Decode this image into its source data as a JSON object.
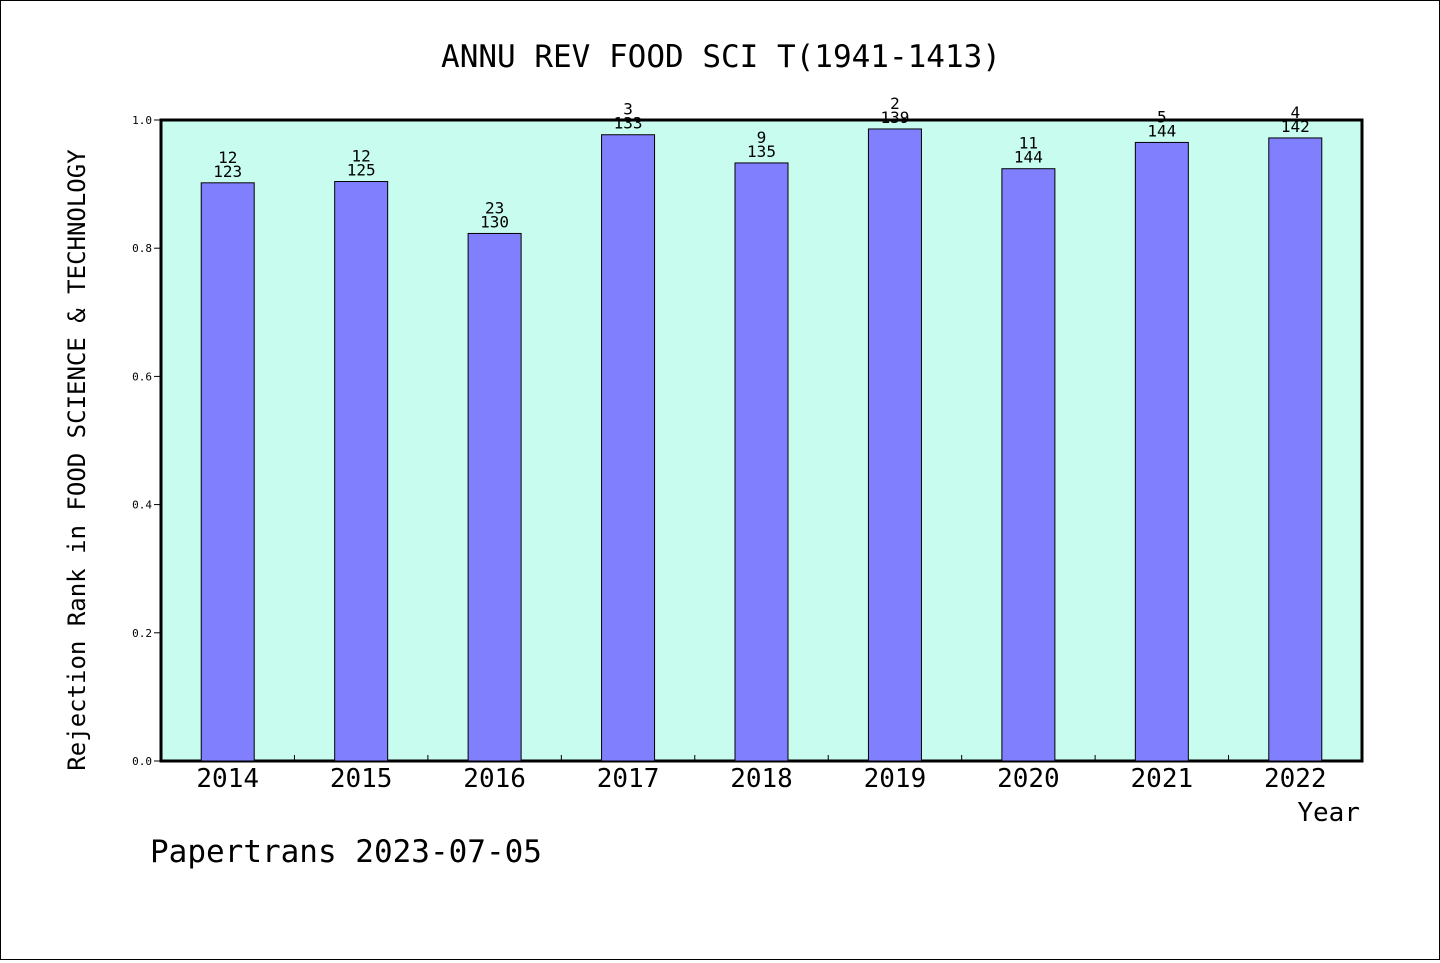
{
  "chart_data": {
    "type": "bar",
    "title": "ANNU REV FOOD SCI T(1941-1413)",
    "xlabel": "Year",
    "ylabel": "Rejection Rank in FOOD SCIENCE & TECHNOLOGY",
    "categories": [
      "2014",
      "2015",
      "2016",
      "2017",
      "2018",
      "2019",
      "2020",
      "2021",
      "2022"
    ],
    "values": [
      0.902,
      0.904,
      0.823,
      0.977,
      0.933,
      0.986,
      0.924,
      0.965,
      0.972
    ],
    "rank_labels": [
      "12",
      "12",
      "23",
      "3",
      "9",
      "2",
      "11",
      "5",
      "4"
    ],
    "total_labels": [
      "123",
      "125",
      "130",
      "133",
      "135",
      "139",
      "144",
      "144",
      "142"
    ],
    "ylim": [
      0,
      1
    ],
    "yticks": [
      "0.0",
      "0.2",
      "0.4",
      "0.6",
      "0.8",
      "1.0"
    ],
    "grid": false,
    "colors": {
      "bar": "#8080ff",
      "plot_background": "#c8fcee",
      "axis": "#000000"
    }
  },
  "footer": {
    "text": "Papertrans 2023-07-05"
  }
}
